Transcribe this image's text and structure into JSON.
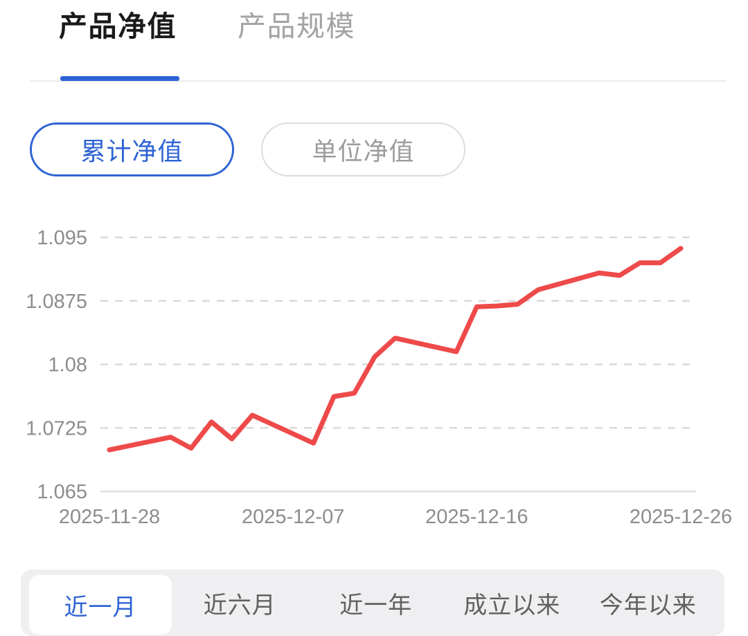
{
  "header": {
    "tabs": [
      {
        "label": "产品净值",
        "active": true
      },
      {
        "label": "产品规模",
        "active": false
      }
    ]
  },
  "toggles": [
    {
      "label": "累计净值",
      "active": true
    },
    {
      "label": "单位净值",
      "active": false
    }
  ],
  "range_tabs": [
    {
      "label": "近一月",
      "active": true
    },
    {
      "label": "近六月",
      "active": false
    },
    {
      "label": "近一年",
      "active": false
    },
    {
      "label": "成立以来",
      "active": false
    },
    {
      "label": "今年以来",
      "active": false
    }
  ],
  "colors": {
    "accent_blue": "#2e63d4",
    "line_red": "#ee4a4a",
    "grid_dash": "#d9d9d9",
    "grid_solid": "#e3e3e3",
    "axis_text": "#8c8c8c"
  },
  "chart_data": {
    "type": "line",
    "x_domain": [
      "2025-11-28",
      "2025-12-26"
    ],
    "ylim": [
      1.065,
      1.095
    ],
    "grid": "horizontal dashed, bottom axis solid",
    "legend": "none",
    "y_ticks": [
      {
        "value": 1.095,
        "label": "1.095"
      },
      {
        "value": 1.0875,
        "label": "1.0875"
      },
      {
        "value": 1.08,
        "label": "1.08"
      },
      {
        "value": 1.0725,
        "label": "1.0725"
      },
      {
        "value": 1.065,
        "label": "1.065"
      }
    ],
    "x_ticks": [
      {
        "date": "2025-11-28",
        "label": "2025-11-28"
      },
      {
        "date": "2025-12-07",
        "label": "2025-12-07"
      },
      {
        "date": "2025-12-16",
        "label": "2025-12-16"
      },
      {
        "date": "2025-12-26",
        "label": "2025-12-26"
      }
    ],
    "series": [
      {
        "name": "累计净值",
        "color": "#ee4a4a",
        "points": [
          {
            "date": "2025-11-28",
            "value": 1.0699
          },
          {
            "date": "2025-12-01",
            "value": 1.0714
          },
          {
            "date": "2025-12-02",
            "value": 1.0701
          },
          {
            "date": "2025-12-03",
            "value": 1.0732
          },
          {
            "date": "2025-12-04",
            "value": 1.0712
          },
          {
            "date": "2025-12-05",
            "value": 1.074
          },
          {
            "date": "2025-12-08",
            "value": 1.0707
          },
          {
            "date": "2025-12-09",
            "value": 1.0762
          },
          {
            "date": "2025-12-10",
            "value": 1.0766
          },
          {
            "date": "2025-12-11",
            "value": 1.0809
          },
          {
            "date": "2025-12-12",
            "value": 1.0831
          },
          {
            "date": "2025-12-15",
            "value": 1.0815
          },
          {
            "date": "2025-12-16",
            "value": 1.0868
          },
          {
            "date": "2025-12-17",
            "value": 1.0869
          },
          {
            "date": "2025-12-18",
            "value": 1.0871
          },
          {
            "date": "2025-12-19",
            "value": 1.0888
          },
          {
            "date": "2025-12-22",
            "value": 1.0908
          },
          {
            "date": "2025-12-23",
            "value": 1.0905
          },
          {
            "date": "2025-12-24",
            "value": 1.092
          },
          {
            "date": "2025-12-25",
            "value": 1.092
          },
          {
            "date": "2025-12-26",
            "value": 1.0937
          }
        ]
      }
    ]
  }
}
